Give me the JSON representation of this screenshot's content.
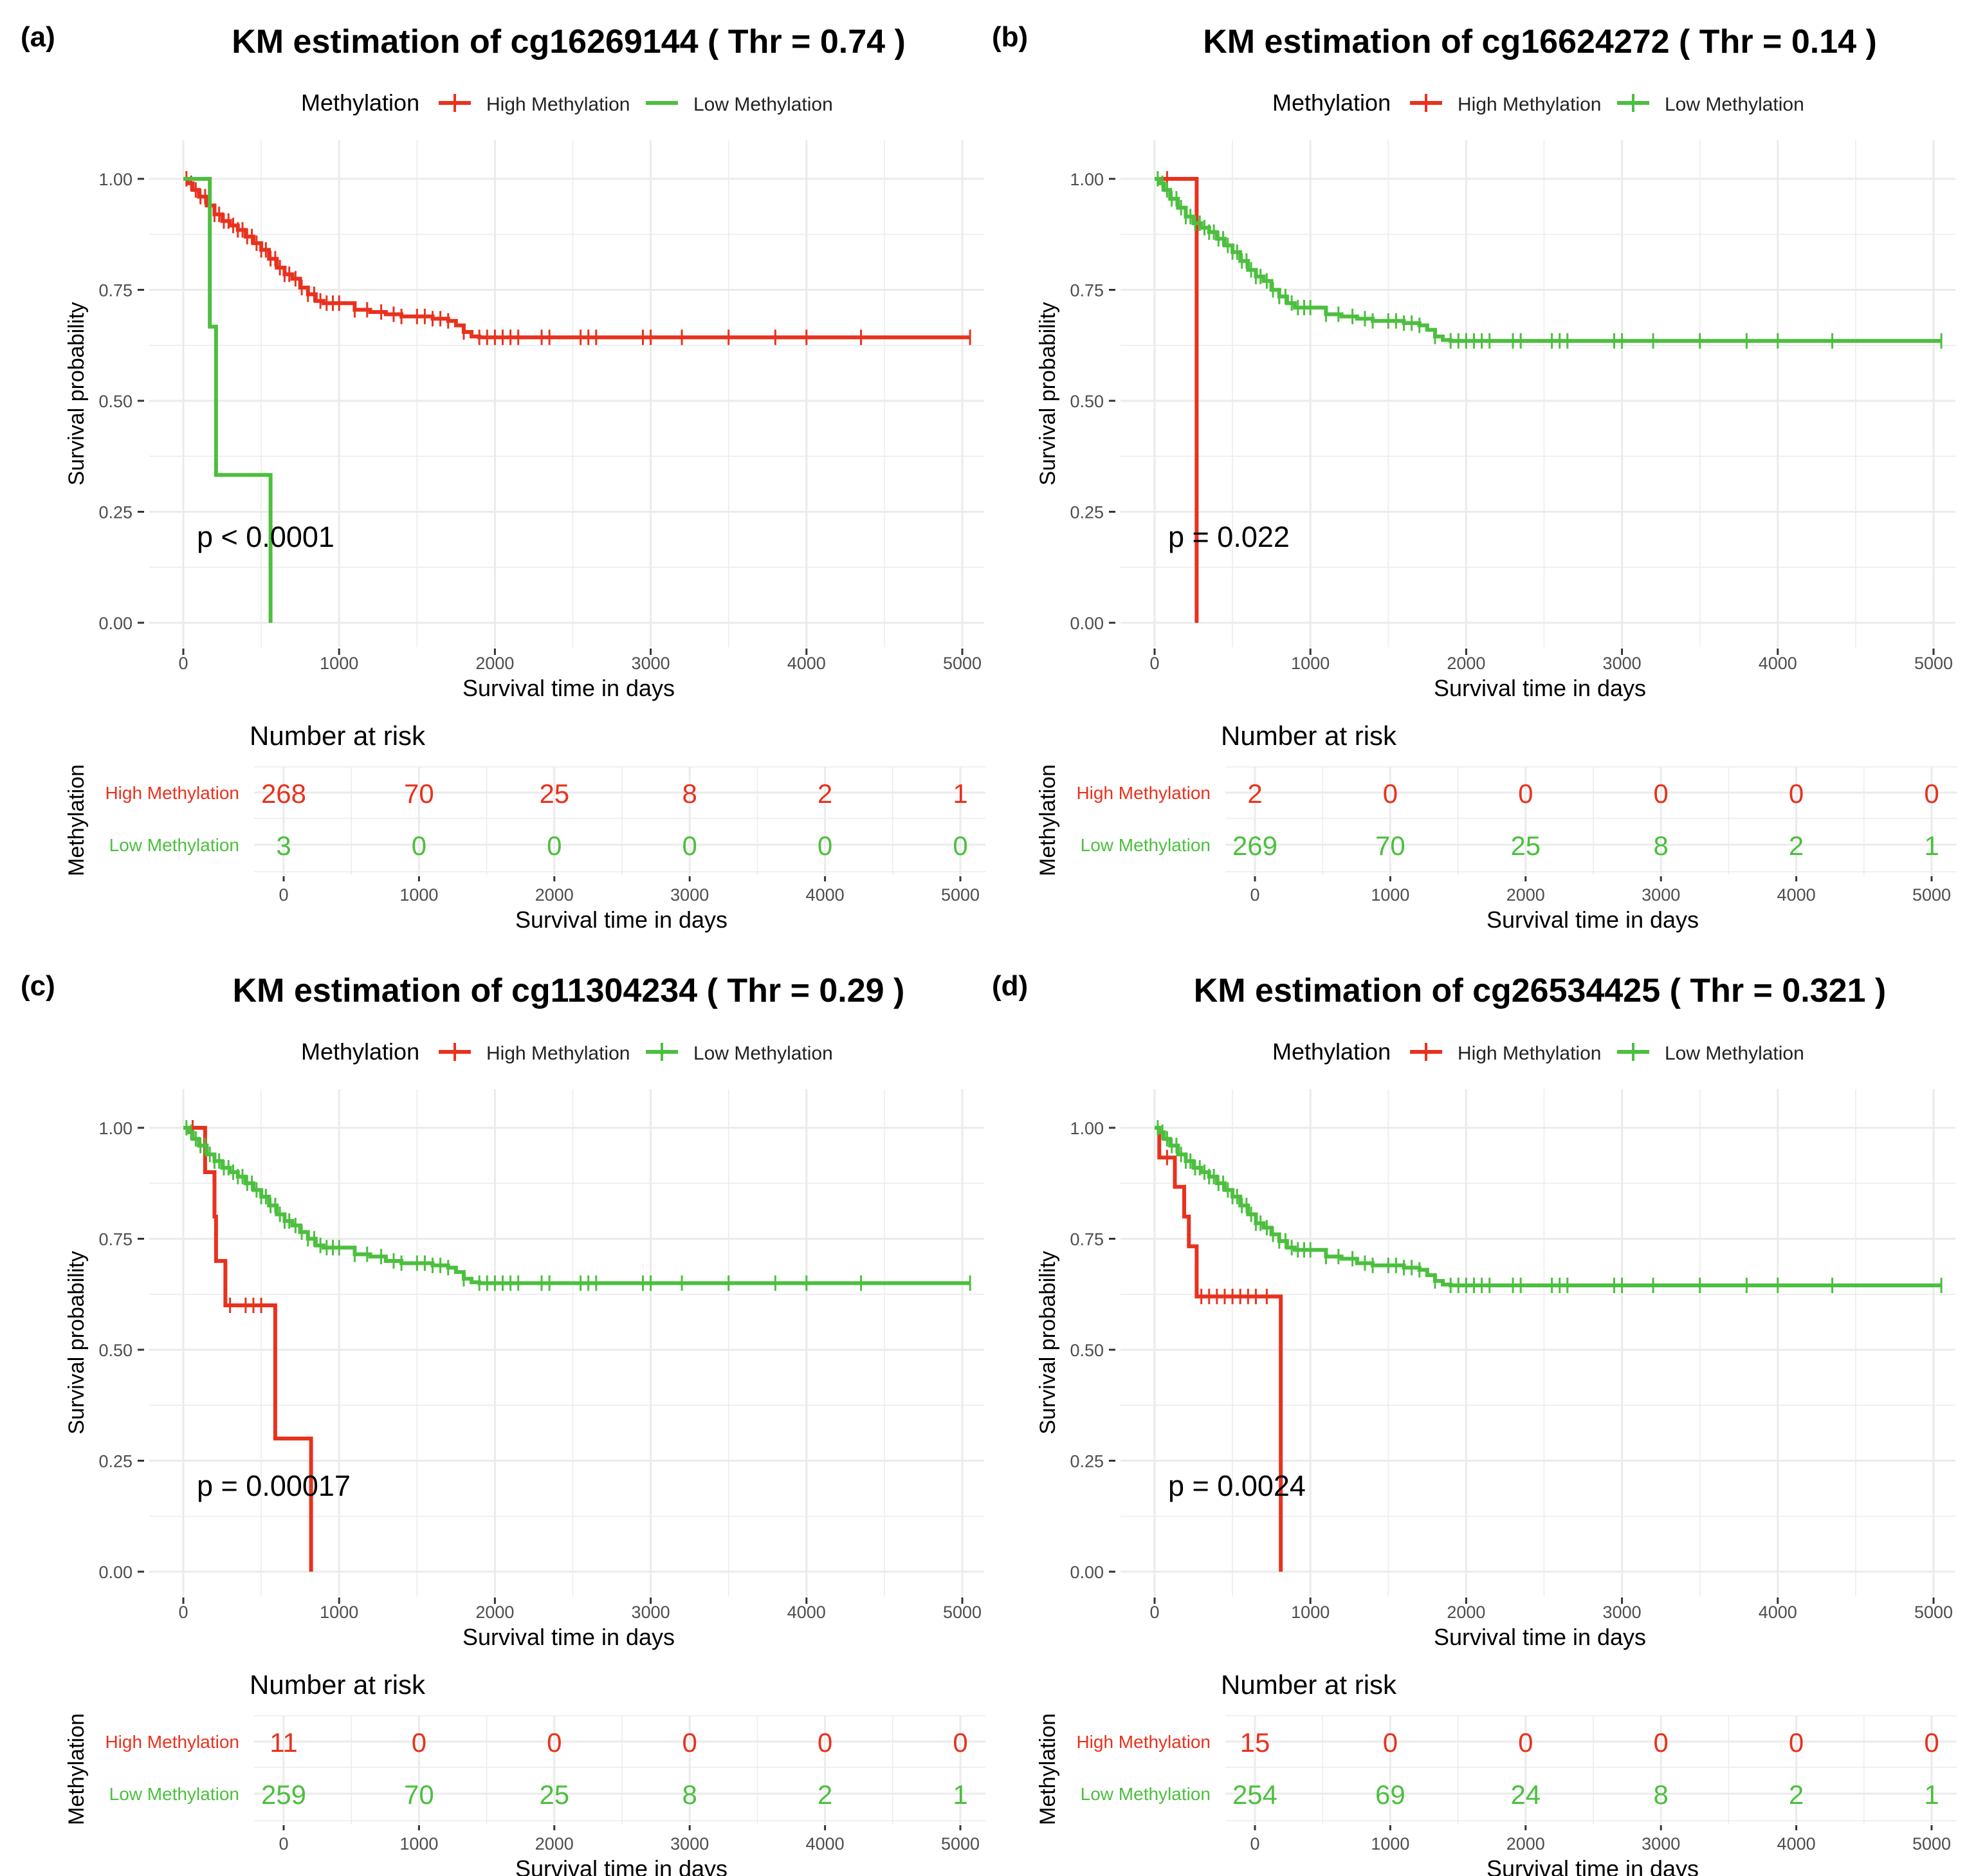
{
  "figure": {
    "common": {
      "legend_title": "Methylation",
      "high_label": "High Methylation",
      "low_label": "Low Methylation",
      "y_label": "Survival probability",
      "x_label": "Survival time in days",
      "risk_title": "Number at risk",
      "risk_y_label": "Methylation",
      "high_color": "#e8321e",
      "low_color": "#4cbf3f"
    }
  },
  "chart_data": [
    {
      "type": "line",
      "panel": "(a)",
      "title": "KM estimation of  cg16269144 ( Thr =  0.74 )",
      "xlabel": "Survival time in days",
      "ylabel": "Survival probability",
      "xlim": [
        0,
        5050
      ],
      "ylim": [
        0,
        1
      ],
      "x_ticks": [
        0,
        1000,
        2000,
        3000,
        4000,
        5000
      ],
      "y_ticks": [
        "0.00",
        "0.25",
        "0.50",
        "0.75",
        "1.00"
      ],
      "pvalue": "p < 0.0001",
      "legend_symbol": "line",
      "series": [
        {
          "name": "High Methylation",
          "color": "#e8321e",
          "x": [
            0,
            30,
            60,
            100,
            150,
            200,
            250,
            300,
            350,
            400,
            450,
            500,
            550,
            600,
            650,
            700,
            750,
            800,
            850,
            900,
            1000,
            1100,
            1200,
            1300,
            1400,
            1500,
            1600,
            1700,
            1750,
            1800,
            1850,
            1900,
            2000,
            2500,
            3000,
            4000,
            5050
          ],
          "y": [
            1.0,
            0.99,
            0.975,
            0.96,
            0.94,
            0.92,
            0.905,
            0.895,
            0.885,
            0.87,
            0.855,
            0.84,
            0.82,
            0.8,
            0.785,
            0.775,
            0.755,
            0.74,
            0.725,
            0.72,
            0.72,
            0.705,
            0.7,
            0.695,
            0.69,
            0.69,
            0.685,
            0.68,
            0.67,
            0.655,
            0.645,
            0.643,
            0.643,
            0.643,
            0.643,
            0.643,
            0.643
          ],
          "censor_x": [
            20,
            50,
            80,
            110,
            140,
            170,
            200,
            230,
            260,
            290,
            320,
            350,
            380,
            410,
            440,
            470,
            500,
            530,
            560,
            590,
            620,
            650,
            680,
            720,
            760,
            800,
            840,
            880,
            920,
            960,
            1000,
            1100,
            1180,
            1270,
            1350,
            1400,
            1500,
            1550,
            1600,
            1650,
            1700,
            1800,
            1900,
            1950,
            2000,
            2050,
            2100,
            2150,
            2300,
            2350,
            2550,
            2600,
            2650,
            2950,
            3000,
            3200,
            3500,
            3800,
            4000,
            4350,
            5050
          ]
        },
        {
          "name": "Low Methylation",
          "color": "#4cbf3f",
          "x": [
            0,
            170,
            170,
            210,
            210,
            560,
            560
          ],
          "y": [
            1.0,
            1.0,
            0.667,
            0.667,
            0.333,
            0.333,
            0.0
          ],
          "censor_x": []
        }
      ],
      "risk_table": {
        "times": [
          0,
          1000,
          2000,
          3000,
          4000,
          5000
        ],
        "high": [
          "268",
          "70",
          "25",
          "8",
          "2",
          "1"
        ],
        "low": [
          "3",
          "0",
          "0",
          "0",
          "0",
          "0"
        ]
      }
    },
    {
      "type": "line",
      "panel": "(b)",
      "title": "KM estimation of  cg16624272 ( Thr =  0.14 )",
      "xlabel": "Survival time in days",
      "ylabel": "Survival probability",
      "xlim": [
        0,
        5050
      ],
      "ylim": [
        0,
        1
      ],
      "x_ticks": [
        0,
        1000,
        2000,
        3000,
        4000,
        5000
      ],
      "y_ticks": [
        "0.00",
        "0.25",
        "0.50",
        "0.75",
        "1.00"
      ],
      "pvalue": "p = 0.022",
      "legend_symbol": "cross",
      "series": [
        {
          "name": "High Methylation",
          "color": "#e8321e",
          "x": [
            0,
            270,
            270
          ],
          "y": [
            1.0,
            1.0,
            0.0
          ],
          "censor_x": [
            80
          ]
        },
        {
          "name": "Low Methylation",
          "color": "#4cbf3f",
          "x": [
            0,
            30,
            60,
            100,
            150,
            200,
            250,
            300,
            350,
            400,
            450,
            500,
            550,
            600,
            650,
            700,
            750,
            800,
            850,
            900,
            1000,
            1100,
            1200,
            1300,
            1400,
            1500,
            1600,
            1700,
            1750,
            1800,
            1850,
            1900,
            2000,
            2500,
            3000,
            4000,
            5050
          ],
          "y": [
            1.0,
            0.99,
            0.975,
            0.955,
            0.935,
            0.915,
            0.9,
            0.89,
            0.88,
            0.865,
            0.85,
            0.835,
            0.815,
            0.795,
            0.78,
            0.77,
            0.75,
            0.735,
            0.72,
            0.71,
            0.71,
            0.695,
            0.69,
            0.685,
            0.68,
            0.68,
            0.675,
            0.67,
            0.66,
            0.645,
            0.637,
            0.635,
            0.635,
            0.635,
            0.635,
            0.635,
            0.635
          ],
          "censor_x": [
            20,
            50,
            80,
            110,
            140,
            170,
            200,
            230,
            260,
            290,
            320,
            350,
            380,
            410,
            440,
            470,
            500,
            530,
            560,
            590,
            620,
            650,
            680,
            720,
            760,
            800,
            840,
            880,
            920,
            960,
            1000,
            1100,
            1180,
            1270,
            1350,
            1400,
            1500,
            1550,
            1600,
            1650,
            1700,
            1800,
            1900,
            1950,
            2000,
            2050,
            2100,
            2150,
            2300,
            2350,
            2550,
            2600,
            2650,
            2950,
            3000,
            3200,
            3500,
            3800,
            4000,
            4350,
            5050
          ]
        }
      ],
      "risk_table": {
        "times": [
          0,
          1000,
          2000,
          3000,
          4000,
          5000
        ],
        "high": [
          "2",
          "0",
          "0",
          "0",
          "0",
          "0"
        ],
        "low": [
          "269",
          "70",
          "25",
          "8",
          "2",
          "1"
        ]
      }
    },
    {
      "type": "line",
      "panel": "(c)",
      "title": "KM estimation of  cg11304234 ( Thr =  0.29 )",
      "xlabel": "Survival time in days",
      "ylabel": "Survival probability",
      "xlim": [
        0,
        5050
      ],
      "ylim": [
        0,
        1
      ],
      "x_ticks": [
        0,
        1000,
        2000,
        3000,
        4000,
        5000
      ],
      "y_ticks": [
        "0.00",
        "0.25",
        "0.50",
        "0.75",
        "1.00"
      ],
      "pvalue": "p = 0.00017",
      "legend_symbol": "cross",
      "series": [
        {
          "name": "High Methylation",
          "color": "#e8321e",
          "x": [
            0,
            140,
            140,
            200,
            200,
            210,
            210,
            270,
            270,
            590,
            590,
            820,
            820
          ],
          "y": [
            1.0,
            1.0,
            0.9,
            0.9,
            0.8,
            0.8,
            0.7,
            0.7,
            0.6,
            0.6,
            0.3,
            0.3,
            0.0
          ],
          "censor_x": [
            60,
            300,
            400,
            450,
            500
          ]
        },
        {
          "name": "Low Methylation",
          "color": "#4cbf3f",
          "x": [
            0,
            30,
            60,
            100,
            150,
            200,
            250,
            300,
            350,
            400,
            450,
            500,
            550,
            600,
            650,
            700,
            750,
            800,
            850,
            900,
            1000,
            1100,
            1200,
            1300,
            1400,
            1500,
            1600,
            1700,
            1750,
            1800,
            1850,
            1900,
            2000,
            2500,
            3000,
            4000,
            5050
          ],
          "y": [
            1.0,
            0.99,
            0.975,
            0.96,
            0.94,
            0.925,
            0.91,
            0.9,
            0.89,
            0.875,
            0.86,
            0.845,
            0.825,
            0.805,
            0.79,
            0.78,
            0.765,
            0.75,
            0.735,
            0.73,
            0.73,
            0.715,
            0.71,
            0.7,
            0.695,
            0.695,
            0.69,
            0.685,
            0.675,
            0.66,
            0.652,
            0.65,
            0.65,
            0.65,
            0.65,
            0.65,
            0.65
          ],
          "censor_x": [
            20,
            50,
            80,
            110,
            140,
            170,
            200,
            230,
            260,
            290,
            320,
            350,
            380,
            410,
            440,
            470,
            500,
            530,
            560,
            590,
            620,
            650,
            680,
            720,
            760,
            800,
            840,
            880,
            920,
            960,
            1000,
            1100,
            1180,
            1270,
            1350,
            1400,
            1500,
            1550,
            1600,
            1650,
            1700,
            1800,
            1900,
            1950,
            2000,
            2050,
            2100,
            2150,
            2300,
            2350,
            2550,
            2600,
            2650,
            2950,
            3000,
            3200,
            3500,
            3800,
            4000,
            4350,
            5050
          ]
        }
      ],
      "risk_table": {
        "times": [
          0,
          1000,
          2000,
          3000,
          4000,
          5000
        ],
        "high": [
          "11",
          "0",
          "0",
          "0",
          "0",
          "0"
        ],
        "low": [
          "259",
          "70",
          "25",
          "8",
          "2",
          "1"
        ]
      }
    },
    {
      "type": "line",
      "panel": "(d)",
      "title": "KM estimation of  cg26534425 ( Thr =  0.321 )",
      "xlabel": "Survival time in days",
      "ylabel": "Survival probability",
      "xlim": [
        0,
        5050
      ],
      "ylim": [
        0,
        1
      ],
      "x_ticks": [
        0,
        1000,
        2000,
        3000,
        4000,
        5000
      ],
      "y_ticks": [
        "0.00",
        "0.25",
        "0.50",
        "0.75",
        "1.00"
      ],
      "pvalue": "p = 0.0024",
      "legend_symbol": "cross",
      "series": [
        {
          "name": "High Methylation",
          "color": "#e8321e",
          "x": [
            0,
            30,
            30,
            130,
            130,
            190,
            190,
            220,
            220,
            270,
            270,
            810,
            810
          ],
          "y": [
            1.0,
            1.0,
            0.933,
            0.933,
            0.867,
            0.867,
            0.8,
            0.8,
            0.733,
            0.733,
            0.62,
            0.62,
            0.0
          ],
          "censor_x": [
            80,
            300,
            350,
            400,
            450,
            500,
            550,
            600,
            650,
            720
          ]
        },
        {
          "name": "Low Methylation",
          "color": "#4cbf3f",
          "x": [
            0,
            30,
            60,
            100,
            150,
            200,
            250,
            300,
            350,
            400,
            450,
            500,
            550,
            600,
            650,
            700,
            750,
            800,
            850,
            900,
            1000,
            1100,
            1200,
            1300,
            1400,
            1500,
            1600,
            1700,
            1750,
            1800,
            1850,
            1900,
            2000,
            2500,
            3000,
            4000,
            5050
          ],
          "y": [
            1.0,
            0.99,
            0.975,
            0.96,
            0.94,
            0.925,
            0.91,
            0.9,
            0.89,
            0.875,
            0.86,
            0.845,
            0.825,
            0.805,
            0.785,
            0.775,
            0.76,
            0.745,
            0.73,
            0.725,
            0.725,
            0.71,
            0.705,
            0.695,
            0.69,
            0.69,
            0.685,
            0.68,
            0.668,
            0.655,
            0.647,
            0.645,
            0.645,
            0.645,
            0.645,
            0.645,
            0.645
          ],
          "censor_x": [
            20,
            50,
            80,
            110,
            140,
            170,
            200,
            230,
            260,
            290,
            320,
            350,
            380,
            410,
            440,
            470,
            500,
            530,
            560,
            590,
            620,
            650,
            680,
            720,
            760,
            800,
            840,
            880,
            920,
            960,
            1000,
            1100,
            1180,
            1270,
            1350,
            1400,
            1500,
            1550,
            1600,
            1650,
            1700,
            1800,
            1900,
            1950,
            2000,
            2050,
            2100,
            2150,
            2300,
            2350,
            2550,
            2600,
            2650,
            2950,
            3000,
            3200,
            3500,
            3800,
            4000,
            4350,
            5050
          ]
        }
      ],
      "risk_table": {
        "times": [
          0,
          1000,
          2000,
          3000,
          4000,
          5000
        ],
        "high": [
          "15",
          "0",
          "0",
          "0",
          "0",
          "0"
        ],
        "low": [
          "254",
          "69",
          "24",
          "8",
          "2",
          "1"
        ]
      }
    }
  ]
}
